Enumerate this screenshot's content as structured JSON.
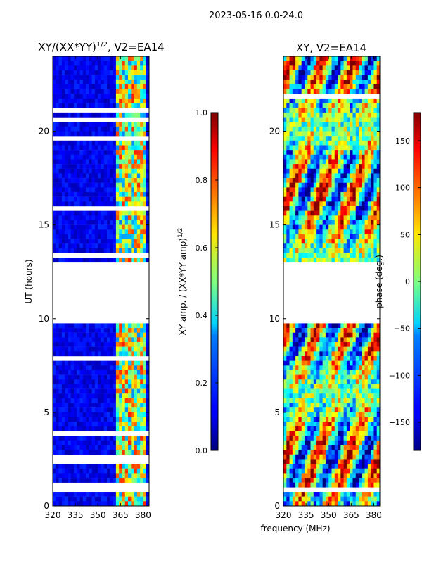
{
  "suptitle": "2023-05-16 0.0-24.0",
  "chart_data": [
    {
      "type": "heatmap",
      "title": "XY/(XX*YY)",
      "title_sup": "1/2",
      "title_suffix": ", V2=EA14",
      "ylabel": "UT (hours)",
      "xlabel": "",
      "x_ticks": [
        "320",
        "335",
        "350",
        "365",
        "380"
      ],
      "x_tick_values": [
        320,
        335,
        350,
        365,
        380
      ],
      "xlim": [
        320,
        384
      ],
      "y_ticks": [
        "0",
        "5",
        "10",
        "15",
        "20"
      ],
      "y_tick_values": [
        0,
        5,
        10,
        15,
        20
      ],
      "ylim": [
        0,
        24
      ],
      "gap_hours": [
        9.8,
        12.8
      ],
      "colorbar": {
        "label": "XY amp. / (XX*YY amp)",
        "label_sup": "1/2",
        "range": [
          0.0,
          1.0
        ],
        "ticks": [
          "0.0",
          "0.2",
          "0.4",
          "0.6",
          "0.8",
          "1.0"
        ],
        "tick_values": [
          0.0,
          0.2,
          0.4,
          0.6,
          0.8,
          1.0
        ],
        "colormap": "jet"
      }
    },
    {
      "type": "heatmap",
      "title": "XY, V2=EA14",
      "ylabel": "",
      "xlabel": "frequency (MHz)",
      "x_ticks": [
        "320",
        "335",
        "350",
        "365",
        "380"
      ],
      "x_tick_values": [
        320,
        335,
        350,
        365,
        380
      ],
      "xlim": [
        320,
        384
      ],
      "y_ticks": [
        "0",
        "5",
        "10",
        "15",
        "20"
      ],
      "y_tick_values": [
        0,
        5,
        10,
        15,
        20
      ],
      "ylim": [
        0,
        24
      ],
      "gap_hours": [
        9.8,
        12.8
      ],
      "colorbar": {
        "label": "phase (deg.)",
        "range": [
          -180,
          180
        ],
        "ticks": [
          "−150",
          "−100",
          "−50",
          "0",
          "50",
          "100",
          "150"
        ],
        "tick_values": [
          -150,
          -100,
          -50,
          0,
          50,
          100,
          150
        ],
        "colormap": "jet"
      }
    }
  ]
}
